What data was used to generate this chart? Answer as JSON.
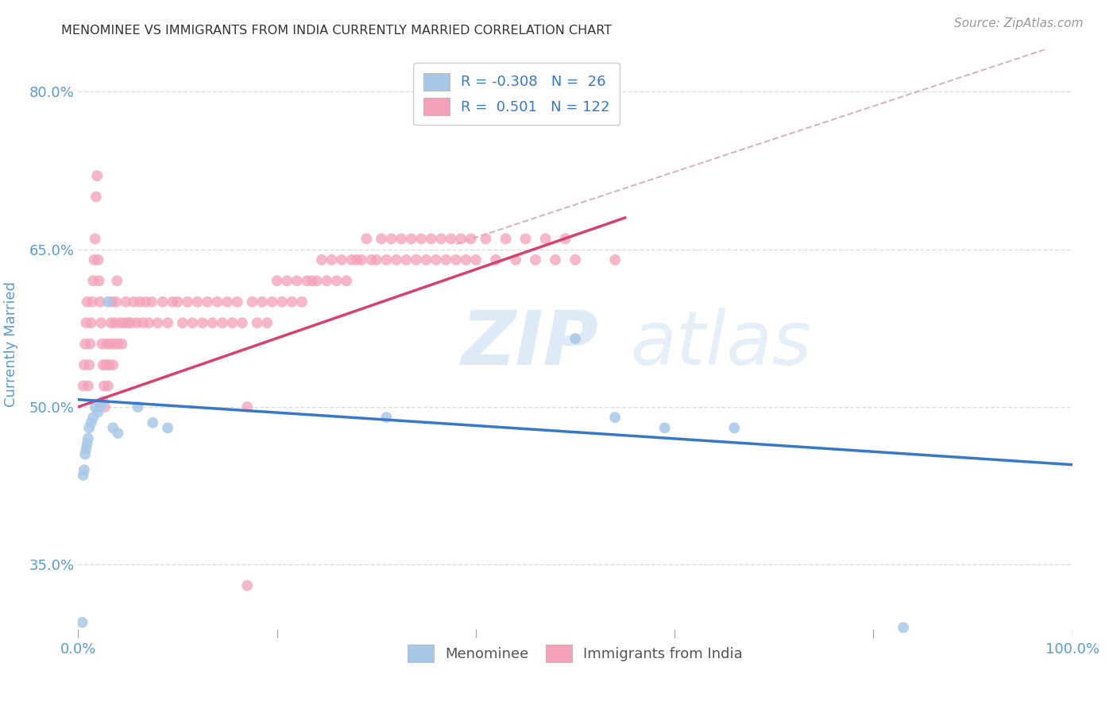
{
  "title": "MENOMINEE VS IMMIGRANTS FROM INDIA CURRENTLY MARRIED CORRELATION CHART",
  "source": "Source: ZipAtlas.com",
  "ylabel": "Currently Married",
  "xlim": [
    0.0,
    1.0
  ],
  "ylim": [
    0.28,
    0.84
  ],
  "ytick_vals": [
    0.35,
    0.5,
    0.65,
    0.8
  ],
  "ytick_labels": [
    "35.0%",
    "50.0%",
    "65.0%",
    "80.0%"
  ],
  "xtick_vals": [
    0.0,
    0.2,
    0.4,
    0.6,
    0.8,
    1.0
  ],
  "xtick_labels": [
    "0.0%",
    "",
    "",
    "",
    "",
    "100.0%"
  ],
  "blue_fill": "#a8c8e8",
  "pink_fill": "#f4a0b8",
  "blue_line": "#3878c8",
  "pink_line": "#d84070",
  "dash_color": "#d0a0b0",
  "title_color": "#333333",
  "axis_label_color": "#5b9bd5",
  "tick_color": "#5b9bd5",
  "grid_color": "#dddddd",
  "menominee_x": [
    0.004,
    0.005,
    0.006,
    0.007,
    0.008,
    0.009,
    0.01,
    0.011,
    0.013,
    0.015,
    0.017,
    0.02,
    0.022,
    0.025,
    0.03,
    0.035,
    0.04,
    0.06,
    0.075,
    0.09,
    0.31,
    0.5,
    0.54,
    0.59,
    0.66,
    0.83
  ],
  "menominee_y": [
    0.295,
    0.435,
    0.44,
    0.455,
    0.46,
    0.465,
    0.47,
    0.48,
    0.485,
    0.49,
    0.5,
    0.495,
    0.5,
    0.505,
    0.6,
    0.48,
    0.475,
    0.5,
    0.485,
    0.48,
    0.49,
    0.565,
    0.49,
    0.48,
    0.48,
    0.29
  ],
  "india_x": [
    0.005,
    0.006,
    0.007,
    0.008,
    0.009,
    0.01,
    0.011,
    0.012,
    0.013,
    0.014,
    0.015,
    0.016,
    0.017,
    0.018,
    0.019,
    0.02,
    0.021,
    0.022,
    0.023,
    0.024,
    0.025,
    0.026,
    0.027,
    0.028,
    0.029,
    0.03,
    0.031,
    0.032,
    0.033,
    0.034,
    0.035,
    0.036,
    0.037,
    0.038,
    0.039,
    0.04,
    0.042,
    0.044,
    0.046,
    0.048,
    0.05,
    0.053,
    0.056,
    0.059,
    0.062,
    0.065,
    0.068,
    0.071,
    0.074,
    0.08,
    0.085,
    0.09,
    0.095,
    0.1,
    0.105,
    0.11,
    0.115,
    0.12,
    0.125,
    0.13,
    0.135,
    0.14,
    0.145,
    0.15,
    0.155,
    0.16,
    0.165,
    0.17,
    0.175,
    0.18,
    0.185,
    0.19,
    0.195,
    0.2,
    0.205,
    0.21,
    0.215,
    0.22,
    0.225,
    0.23,
    0.235,
    0.24,
    0.245,
    0.25,
    0.255,
    0.26,
    0.265,
    0.27,
    0.275,
    0.28,
    0.285,
    0.29,
    0.295,
    0.3,
    0.305,
    0.31,
    0.315,
    0.32,
    0.325,
    0.33,
    0.335,
    0.34,
    0.345,
    0.35,
    0.355,
    0.36,
    0.365,
    0.37,
    0.375,
    0.38,
    0.385,
    0.39,
    0.395,
    0.4,
    0.41,
    0.42,
    0.43,
    0.44,
    0.45,
    0.46,
    0.47,
    0.48,
    0.49,
    0.5,
    0.17,
    0.54
  ],
  "india_y": [
    0.52,
    0.54,
    0.56,
    0.58,
    0.6,
    0.52,
    0.54,
    0.56,
    0.58,
    0.6,
    0.62,
    0.64,
    0.66,
    0.7,
    0.72,
    0.64,
    0.62,
    0.6,
    0.58,
    0.56,
    0.54,
    0.52,
    0.5,
    0.54,
    0.56,
    0.52,
    0.54,
    0.56,
    0.58,
    0.6,
    0.54,
    0.56,
    0.58,
    0.6,
    0.62,
    0.56,
    0.58,
    0.56,
    0.58,
    0.6,
    0.58,
    0.58,
    0.6,
    0.58,
    0.6,
    0.58,
    0.6,
    0.58,
    0.6,
    0.58,
    0.6,
    0.58,
    0.6,
    0.6,
    0.58,
    0.6,
    0.58,
    0.6,
    0.58,
    0.6,
    0.58,
    0.6,
    0.58,
    0.6,
    0.58,
    0.6,
    0.58,
    0.33,
    0.6,
    0.58,
    0.6,
    0.58,
    0.6,
    0.62,
    0.6,
    0.62,
    0.6,
    0.62,
    0.6,
    0.62,
    0.62,
    0.62,
    0.64,
    0.62,
    0.64,
    0.62,
    0.64,
    0.62,
    0.64,
    0.64,
    0.64,
    0.66,
    0.64,
    0.64,
    0.66,
    0.64,
    0.66,
    0.64,
    0.66,
    0.64,
    0.66,
    0.64,
    0.66,
    0.64,
    0.66,
    0.64,
    0.66,
    0.64,
    0.66,
    0.64,
    0.66,
    0.64,
    0.66,
    0.64,
    0.66,
    0.64,
    0.66,
    0.64,
    0.66,
    0.64,
    0.66,
    0.64,
    0.66,
    0.64,
    0.5,
    0.64
  ]
}
